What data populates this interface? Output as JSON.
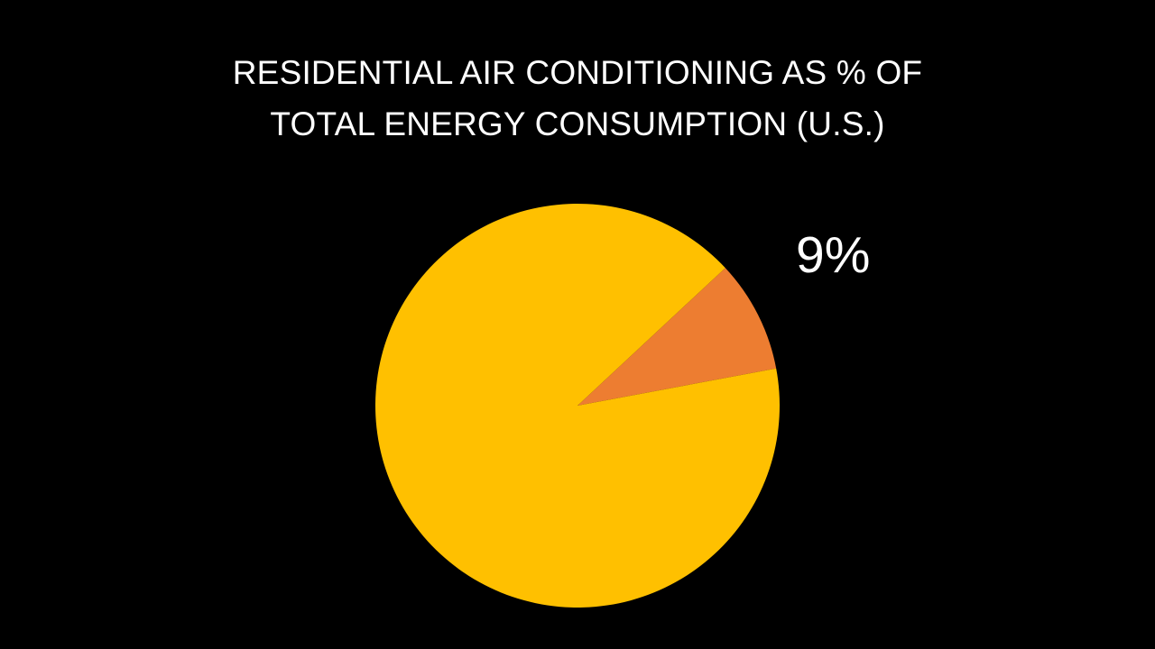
{
  "chart_data": {
    "type": "pie",
    "title": "RESIDENTIAL AIR CONDITIONING AS % OF TOTAL ENERGY CONSUMPTION (U.S.)",
    "title_lines": [
      "RESIDENTIAL AIR CONDITIONING AS % OF",
      "TOTAL ENERGY CONSUMPTION (U.S.)"
    ],
    "slices": [
      {
        "value": 9,
        "label": "9%",
        "color": "#ED7D31"
      },
      {
        "value": 91,
        "label": "",
        "color": "#FFC000"
      }
    ],
    "legend": "none",
    "background": "#000000"
  }
}
